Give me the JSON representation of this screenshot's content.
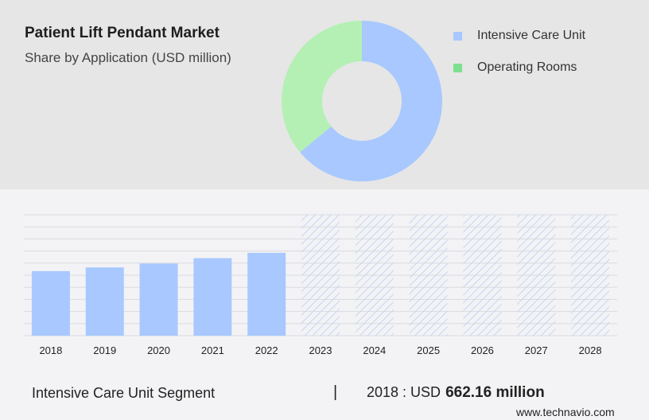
{
  "header": {
    "title": "Patient Lift Pendant Market",
    "subtitle": "Share by Application (USD million)"
  },
  "legend": [
    {
      "label": "Intensive Care Unit",
      "color": "#a8c8ff"
    },
    {
      "label": "Operating Rooms",
      "color": "#7ee08f"
    }
  ],
  "footer": {
    "segment": "Intensive Care Unit Segment",
    "separator": "|",
    "stat_prefix": "2018 : USD",
    "stat_value": "662.16 million",
    "website": "www.technavio.com"
  },
  "chart_data": [
    {
      "type": "pie",
      "donut": true,
      "categories": [
        "Intensive Care Unit",
        "Operating Rooms"
      ],
      "values": [
        64,
        36
      ],
      "colors": [
        "#a8c8ff",
        "#b4f0b4"
      ]
    },
    {
      "type": "bar",
      "categories": [
        "2018",
        "2019",
        "2020",
        "2021",
        "2022",
        "2023",
        "2024",
        "2025",
        "2026",
        "2027",
        "2028"
      ],
      "values": [
        662.16,
        700,
        740,
        795,
        850,
        1240,
        1240,
        1240,
        1240,
        1240,
        1240
      ],
      "forecast_from": "2023",
      "ylim": [
        0,
        1240
      ],
      "grid": true,
      "colors": {
        "actual": "#a8c8ff",
        "forecast_hatch": "#c5d6f2"
      }
    }
  ]
}
